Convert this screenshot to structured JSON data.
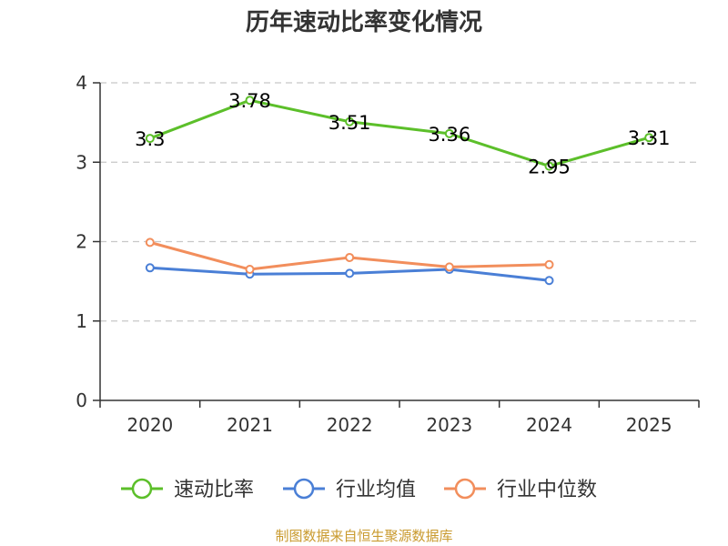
{
  "chart_data": {
    "type": "line",
    "title": "历年速动比率变化情况",
    "categories": [
      "2020",
      "2021",
      "2022",
      "2023",
      "2024",
      "2025"
    ],
    "ylim": [
      0,
      4
    ],
    "yticks": [
      0,
      1,
      2,
      3,
      4
    ],
    "grid": true,
    "legend_position": "bottom",
    "series": [
      {
        "name": "速动比率",
        "color": "#5cbf2a",
        "values": [
          3.3,
          3.78,
          3.51,
          3.36,
          2.95,
          3.31
        ],
        "labels": [
          "3.3",
          "3.78",
          "3.51",
          "3.36",
          "2.95",
          "3.31"
        ]
      },
      {
        "name": "行业均值",
        "color": "#4a7fd6",
        "values": [
          1.67,
          1.59,
          1.6,
          1.65,
          1.51,
          null
        ]
      },
      {
        "name": "行业中位数",
        "color": "#f28e5c",
        "values": [
          1.99,
          1.65,
          1.8,
          1.68,
          1.71,
          null
        ]
      }
    ],
    "source": "制图数据来自恒生聚源数据库"
  }
}
